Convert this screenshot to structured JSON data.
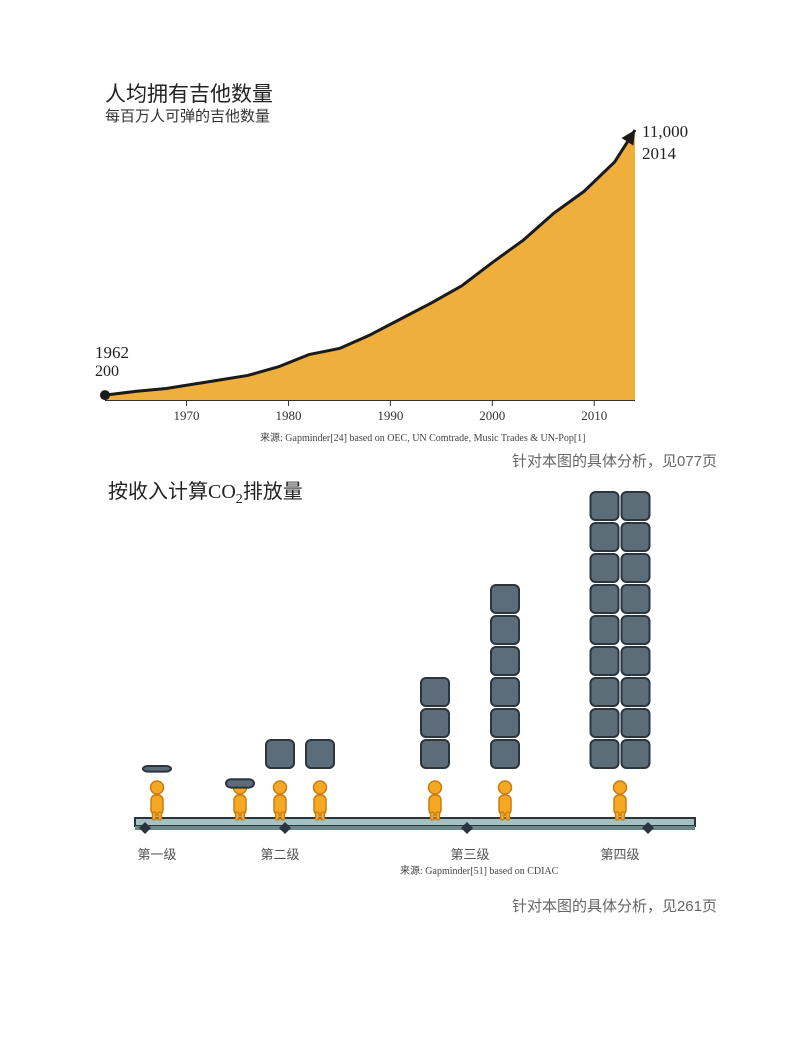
{
  "chart1": {
    "type": "area",
    "title": "人均拥有吉他数量",
    "subtitle": "每百万人可弹的吉他数量",
    "start_year": "1962",
    "start_value": "200",
    "end_value": "11,000",
    "end_year": "2014",
    "x_ticks": [
      "1970",
      "1980",
      "1990",
      "2000",
      "2010"
    ],
    "x_range": [
      1962,
      2014
    ],
    "y_range": [
      0,
      11000
    ],
    "points": [
      {
        "x": 1962,
        "y": 200
      },
      {
        "x": 1965,
        "y": 350
      },
      {
        "x": 1968,
        "y": 470
      },
      {
        "x": 1970,
        "y": 600
      },
      {
        "x": 1973,
        "y": 800
      },
      {
        "x": 1976,
        "y": 1000
      },
      {
        "x": 1979,
        "y": 1350
      },
      {
        "x": 1982,
        "y": 1850
      },
      {
        "x": 1985,
        "y": 2100
      },
      {
        "x": 1988,
        "y": 2650
      },
      {
        "x": 1991,
        "y": 3300
      },
      {
        "x": 1994,
        "y": 3950
      },
      {
        "x": 1997,
        "y": 4650
      },
      {
        "x": 2000,
        "y": 5600
      },
      {
        "x": 2003,
        "y": 6500
      },
      {
        "x": 2006,
        "y": 7600
      },
      {
        "x": 2009,
        "y": 8500
      },
      {
        "x": 2012,
        "y": 9700
      },
      {
        "x": 2014,
        "y": 11000
      }
    ],
    "fill_color": "#eeaf3d",
    "line_color": "#1a1a1a",
    "line_width": 3,
    "start_dot_radius": 5,
    "tick_color": "#333333",
    "axis_color": "#333333",
    "background_color": "#ffffff",
    "source": "来源: Gapminder[24] based on OEC, UN Comtrade, Music Trades & UN-Pop[1]",
    "note": "针对本图的具体分析，见077页",
    "title_fontsize": 21,
    "subtitle_fontsize": 15,
    "label_fontsize": 13,
    "endpoint_fontsize": 17
  },
  "chart2": {
    "type": "pictogram-bar",
    "title_html": "按收入计算CO₂排放量",
    "levels": [
      {
        "label": "第一级",
        "persons": 1,
        "blocks": 1,
        "block_height": 0.18
      },
      {
        "label": "第二级",
        "persons": 3,
        "blocks_per_col": [
          1,
          1,
          1
        ],
        "block_height": 0.25,
        "then_full": false,
        "blocks_stack": [
          1
        ]
      },
      {
        "label": "第三级",
        "persons": 2,
        "blocks_stack": [
          3,
          6
        ]
      },
      {
        "label": "第四级",
        "persons": 1,
        "blocks_stack": [
          9,
          9
        ]
      }
    ],
    "level_positions": [
      132,
      280,
      470,
      620
    ],
    "diamond_positions": [
      60,
      200,
      382,
      563,
      700
    ],
    "person_color_fill": "#f6a724",
    "person_color_stroke": "#c77d0f",
    "block_fill": "#5d6c79",
    "block_stroke": "#2b353e",
    "block_width": 28,
    "block_height": 28,
    "block_radius": 5,
    "block_gap": 3,
    "platform_fill": "#a5c1c1",
    "platform_edge": "#2b353e",
    "platform_top_y": 358,
    "platform_height": 8,
    "platform_x": 50,
    "platform_w": 560,
    "label_fontsize": 13,
    "title_fontsize": 20,
    "source": "来源: Gapminder[51] based on CDIAC",
    "note": "针对本图的具体分析，见261页"
  }
}
